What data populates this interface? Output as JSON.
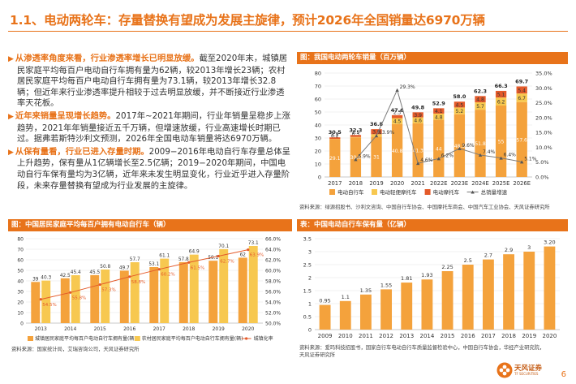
{
  "page": {
    "title": "1.1、电动两轮车：存量替换有望成为发展主旋律，预计2026年全国销量达6970万辆",
    "page_number": "6",
    "brand_color": "#e8731a"
  },
  "paragraphs": [
    {
      "lead": "从渗透率角度来看，行业渗透率增长已明显放缓。",
      "body": "截至2020年末，城镇居民家庭平均每百户电动自行车拥有量为62辆，较2013年增长23辆；农村居民家庭平均每百户电动自行车拥有量为73.1辆，较2013年增长32.8辆；但近年来行业渗透率提升相较于过去明显放缓，并不断接近行业渗透率天花板。"
    },
    {
      "lead": "近年来销量呈现增长趋势。",
      "body": "2017年~2021年期间，行业年销量呈稳步上涨趋势，2021年年销量接近五千万辆，但增速放缓，行业高速增长时期已过。据弗若斯特沙利文预测，2026年全国电动车销量将达6970万辆。"
    },
    {
      "lead": "从保有量看，行业已进入存量时期。",
      "body": "2009−2016年电动自行车存量总体呈上升趋势，保有量从1亿辆增长至2.5亿辆；2019−2020年期间，中国电动自行车保有量均为3亿辆，近年来未发生明显变化，行业近乎进入存量阶段，未来存量替换有望成为行业发展的主旋律。"
    }
  ],
  "charts": {
    "sales": {
      "header": "图：我国电动两轮车销量（百万辆）",
      "source": "资料来源：绿源招股书、沙利文咨询、中国自行车协会、中国摩托车商会、中国汽车工业协会、天风证券研究所"
    },
    "household": {
      "header": "图：中国居民家庭平均每百户拥有电动自行车（辆）",
      "source": "资料来源：国家统计局，艾瑞咨询公司，天风证券研究所"
    },
    "stock": {
      "header": "表：中国电动自行车保有量（亿辆）",
      "source1": "资料来源：爱玛科技招股书，国家自行车电动自行车质量监督检验中心，中国自行车协会，华经产业研究院，",
      "source2": "天风证券研究所"
    }
  },
  "logo": {
    "name": "天风证券",
    "sub": "TF SECURITIES"
  },
  "chart_data": [
    {
      "type": "bar",
      "stacked": true,
      "title": "我国电动两轮车销量（百万辆）",
      "categories": [
        "2017",
        "2018",
        "2019",
        "2020",
        "2021",
        "2022E",
        "2023E",
        "2024E",
        "2025E",
        "2026E"
      ],
      "series": [
        {
          "name": "电动自行车",
          "color": "#f4a23c",
          "values": [
            29.1,
            30.5,
            31,
            40.8,
            41.3,
            44,
            48.3,
            51.8,
            55,
            57.6
          ]
        },
        {
          "name": "电动轻便摩托车",
          "color": "#f7c850",
          "values": [
            0.2,
            0.3,
            1.9,
            4.5,
            4.6,
            4.8,
            5.2,
            5.7,
            6.2,
            6.7
          ]
        },
        {
          "name": "电动摩托车",
          "color": "#e45a2a",
          "values": [
            1.2,
            1.5,
            3.9,
            2.3,
            3.9,
            4.1,
            4.5,
            4.8,
            5.1,
            5.4
          ]
        }
      ],
      "totals": [
        "30.5",
        "32.3",
        "36.8",
        "47.6",
        "49.8",
        "52.9",
        "58.0",
        "62.3",
        "66.3",
        "69.7"
      ],
      "line": {
        "name": "总销量增速",
        "color": "#7a7a7a",
        "labels": [
          "",
          "5.9%",
          "13.9%",
          "29.3%",
          "4.6%",
          "6.2%",
          "9.6%",
          "7.4%",
          "6.4%",
          "5.1%"
        ],
        "values": [
          null,
          5.9,
          13.9,
          29.3,
          4.6,
          6.2,
          9.6,
          7.4,
          6.4,
          5.1
        ]
      },
      "y_left": {
        "min": 0,
        "max": 80,
        "ticks": [
          "0",
          "10",
          "20",
          "30",
          "40",
          "50",
          "60",
          "70",
          "80"
        ]
      },
      "y_right": {
        "min": 0,
        "max": 35,
        "ticks": [
          "0.0%",
          "5.0%",
          "10.0%",
          "15.0%",
          "20.0%",
          "25.0%",
          "30.0%",
          "35.0%"
        ]
      }
    },
    {
      "type": "bar",
      "title": "中国居民家庭平均每百户拥有电动自行车（辆）",
      "categories": [
        "2013",
        "2014",
        "2015",
        "2016",
        "2017",
        "2018",
        "2019",
        "2020"
      ],
      "series": [
        {
          "name": "城镇居民家庭平均每百户电动自行车拥有量(辆)",
          "color": "#f4a23c",
          "values": [
            39,
            42.5,
            45.5,
            49.7,
            53.1,
            57.8,
            59.1,
            62
          ]
        },
        {
          "name": "农村居民家庭平均每百户电动自行车拥有量(辆)",
          "color": "#f7c850",
          "values": [
            40.3,
            45.4,
            50.8,
            57.7,
            61.1,
            64.9,
            70.1,
            73.1
          ]
        }
      ],
      "labels_urban": [
        "39",
        "42.5",
        "45.5",
        "49.7",
        "53.1",
        "57.8",
        "59.1",
        "62"
      ],
      "labels_rural": [
        "40.3",
        "45.4",
        "50.8",
        "57.7",
        "61.1",
        "64.9",
        "70.1",
        "73.1"
      ],
      "line": {
        "name": "城镇化率",
        "color": "#e45a2a",
        "values": [
          54.5,
          55.8,
          57.3,
          58.8,
          60.2,
          61.5,
          62.7,
          63.9
        ],
        "labels": [
          "54.5%",
          "55.8%",
          "57.3%",
          "58.8%",
          "60.2%",
          "61.5%",
          "62.7%",
          "63.9%"
        ]
      },
      "y_left": {
        "min": 0,
        "max": 80,
        "ticks": [
          "0",
          "10",
          "20",
          "30",
          "40",
          "50",
          "60",
          "70",
          "80"
        ]
      },
      "y_right": {
        "min": 50,
        "max": 66,
        "ticks": [
          "50.0%",
          "52.0%",
          "54.0%",
          "56.0%",
          "58.0%",
          "60.0%",
          "62.0%",
          "64.0%",
          "66.0%"
        ]
      }
    },
    {
      "type": "bar",
      "title": "中国电动自行车保有量（亿辆）",
      "categories": [
        "2009",
        "2010",
        "2011",
        "2012",
        "2013",
        "2014",
        "2015",
        "2016",
        "2017",
        "2018",
        "2019",
        "2020"
      ],
      "values": [
        0.95,
        1.1,
        1.35,
        1.55,
        1.81,
        1.93,
        2.25,
        2.5,
        2.7,
        2.9,
        3,
        3.2
      ],
      "labels": [
        "0.95",
        "1.1",
        "1.35",
        "1.55",
        "1.81",
        "1.93",
        "2.25",
        "2.5",
        "2.7",
        "2.9",
        "3",
        "3.20"
      ],
      "color": "#f4a23c",
      "y": {
        "min": 0,
        "max": 3.5,
        "ticks": [
          "0",
          "0.5",
          "1",
          "1.5",
          "2",
          "2.5",
          "3",
          "3.5"
        ]
      }
    }
  ]
}
